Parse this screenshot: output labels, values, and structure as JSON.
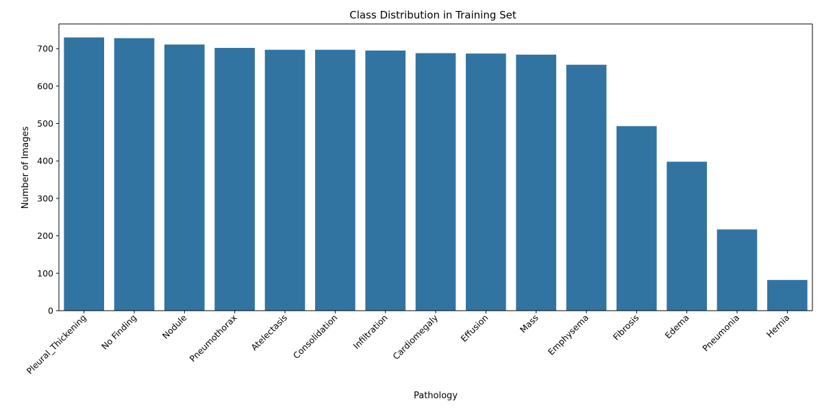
{
  "chart_data": {
    "type": "bar",
    "title": "Class Distribution in Training Set",
    "xlabel": "Pathology",
    "ylabel": "Number of Images",
    "categories": [
      "Pleural_Thickening",
      "No Finding",
      "Nodule",
      "Pneumothorax",
      "Atelectasis",
      "Consolidation",
      "Infiltration",
      "Cardiomegaly",
      "Effusion",
      "Mass",
      "Emphysema",
      "Fibrosis",
      "Edema",
      "Pneumonia",
      "Hernia"
    ],
    "values": [
      730,
      728,
      711,
      702,
      697,
      697,
      695,
      688,
      687,
      684,
      657,
      493,
      398,
      217,
      82
    ],
    "ylim": [
      0,
      766
    ],
    "yticks": [
      0,
      100,
      200,
      300,
      400,
      500,
      600,
      700
    ],
    "bar_color": "#3274a1",
    "grid": false,
    "legend": "none"
  }
}
